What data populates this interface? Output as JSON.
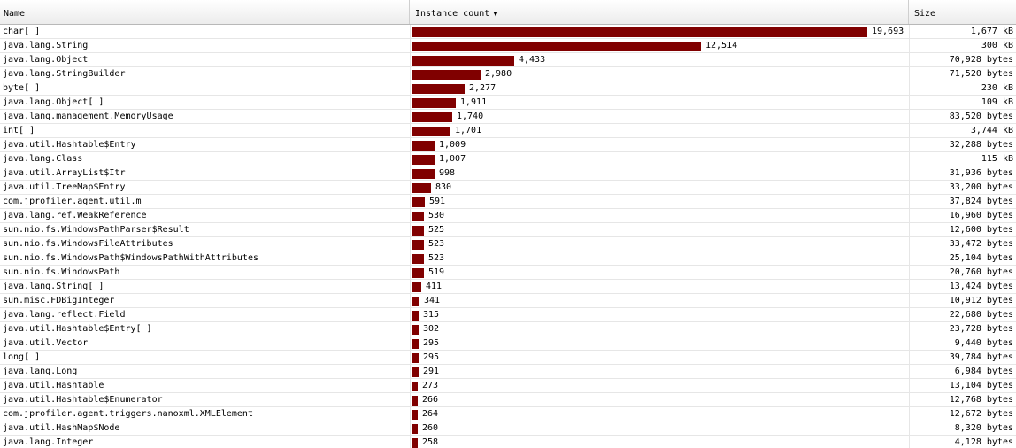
{
  "header": {
    "name_label": "Name",
    "count_label": "Instance count",
    "size_label": "Size",
    "sort_indicator": "▼"
  },
  "colors": {
    "bar": "#800000"
  },
  "max_count": 19693,
  "rows": [
    {
      "name": "char[ ]",
      "count": 19693,
      "count_text": "19,693",
      "size": "1,677 kB"
    },
    {
      "name": "java.lang.String",
      "count": 12514,
      "count_text": "12,514",
      "size": "300 kB"
    },
    {
      "name": "java.lang.Object",
      "count": 4433,
      "count_text": "4,433",
      "size": "70,928 bytes"
    },
    {
      "name": "java.lang.StringBuilder",
      "count": 2980,
      "count_text": "2,980",
      "size": "71,520 bytes"
    },
    {
      "name": "byte[ ]",
      "count": 2277,
      "count_text": "2,277",
      "size": "230 kB"
    },
    {
      "name": "java.lang.Object[ ]",
      "count": 1911,
      "count_text": "1,911",
      "size": "109 kB"
    },
    {
      "name": "java.lang.management.MemoryUsage",
      "count": 1740,
      "count_text": "1,740",
      "size": "83,520 bytes"
    },
    {
      "name": "int[ ]",
      "count": 1701,
      "count_text": "1,701",
      "size": "3,744 kB"
    },
    {
      "name": "java.util.Hashtable$Entry",
      "count": 1009,
      "count_text": "1,009",
      "size": "32,288 bytes"
    },
    {
      "name": "java.lang.Class",
      "count": 1007,
      "count_text": "1,007",
      "size": "115 kB"
    },
    {
      "name": "java.util.ArrayList$Itr",
      "count": 998,
      "count_text": "998",
      "size": "31,936 bytes"
    },
    {
      "name": "java.util.TreeMap$Entry",
      "count": 830,
      "count_text": "830",
      "size": "33,200 bytes"
    },
    {
      "name": "com.jprofiler.agent.util.m",
      "count": 591,
      "count_text": "591",
      "size": "37,824 bytes"
    },
    {
      "name": "java.lang.ref.WeakReference",
      "count": 530,
      "count_text": "530",
      "size": "16,960 bytes"
    },
    {
      "name": "sun.nio.fs.WindowsPathParser$Result",
      "count": 525,
      "count_text": "525",
      "size": "12,600 bytes"
    },
    {
      "name": "sun.nio.fs.WindowsFileAttributes",
      "count": 523,
      "count_text": "523",
      "size": "33,472 bytes"
    },
    {
      "name": "sun.nio.fs.WindowsPath$WindowsPathWithAttributes",
      "count": 523,
      "count_text": "523",
      "size": "25,104 bytes"
    },
    {
      "name": "sun.nio.fs.WindowsPath",
      "count": 519,
      "count_text": "519",
      "size": "20,760 bytes"
    },
    {
      "name": "java.lang.String[ ]",
      "count": 411,
      "count_text": "411",
      "size": "13,424 bytes"
    },
    {
      "name": "sun.misc.FDBigInteger",
      "count": 341,
      "count_text": "341",
      "size": "10,912 bytes"
    },
    {
      "name": "java.lang.reflect.Field",
      "count": 315,
      "count_text": "315",
      "size": "22,680 bytes"
    },
    {
      "name": "java.util.Hashtable$Entry[ ]",
      "count": 302,
      "count_text": "302",
      "size": "23,728 bytes"
    },
    {
      "name": "java.util.Vector",
      "count": 295,
      "count_text": "295",
      "size": "9,440 bytes"
    },
    {
      "name": "long[ ]",
      "count": 295,
      "count_text": "295",
      "size": "39,784 bytes"
    },
    {
      "name": "java.lang.Long",
      "count": 291,
      "count_text": "291",
      "size": "6,984 bytes"
    },
    {
      "name": "java.util.Hashtable",
      "count": 273,
      "count_text": "273",
      "size": "13,104 bytes"
    },
    {
      "name": "java.util.Hashtable$Enumerator",
      "count": 266,
      "count_text": "266",
      "size": "12,768 bytes"
    },
    {
      "name": "com.jprofiler.agent.triggers.nanoxml.XMLElement",
      "count": 264,
      "count_text": "264",
      "size": "12,672 bytes"
    },
    {
      "name": "java.util.HashMap$Node",
      "count": 260,
      "count_text": "260",
      "size": "8,320 bytes"
    },
    {
      "name": "java.lang.Integer",
      "count": 258,
      "count_text": "258",
      "size": "4,128 bytes"
    }
  ]
}
